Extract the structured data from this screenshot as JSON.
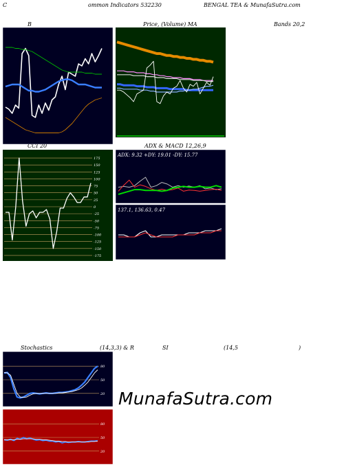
{
  "header": {
    "left": "C",
    "left2": "ommon Indicators 532230",
    "center": "BENGAL TEA & MunafaSutra.com"
  },
  "labels": {
    "bb": "B",
    "price_ma_a": "Price, (Volume) MA",
    "price_ma_b": "Bands 20,2",
    "cci": "CCI 20",
    "adx_macd": "ADX  & MACD 12,26,9",
    "stoch_a": "Stochastics",
    "stoch_b": "(14,3,3) & R",
    "stoch_c": "SI",
    "stoch_d": "(14,5",
    "stoch_e": ")"
  },
  "watermark": "MunafaSutra.com",
  "colors": {
    "dark_panel": "#000022",
    "green_panel": "#002800",
    "green_grid": "#1f4a00",
    "red_panel": "#aa0000",
    "grid_line": "#c8a060",
    "white": "#ffffff",
    "blue": "#3a7fff",
    "green_line": "#00bb00",
    "orange": "#cc7a00"
  },
  "chart_data": [
    {
      "type": "line",
      "panel": "bollinger-bands",
      "title": "B",
      "x": [
        1,
        2,
        3,
        4,
        5,
        6,
        7,
        8,
        9,
        10,
        11,
        12,
        13,
        14,
        15,
        16,
        17,
        18,
        19,
        20,
        21,
        22,
        23,
        24,
        25,
        26,
        27,
        28,
        29,
        30
      ],
      "ylim": [
        0,
        100
      ],
      "series": [
        {
          "values": [
            28,
            26,
            22,
            30,
            27,
            80,
            85,
            78,
            20,
            18,
            30,
            22,
            32,
            25,
            35,
            38,
            50,
            58,
            45,
            62,
            60,
            58,
            70,
            68,
            75,
            70,
            80,
            72,
            78,
            85
          ]
        },
        {
          "values": [
            86,
            86,
            86,
            85,
            85,
            84,
            84,
            83,
            82,
            80,
            78,
            76,
            74,
            72,
            70,
            68,
            66,
            64,
            63,
            62,
            62,
            62,
            62,
            62,
            61,
            61,
            61,
            60,
            60,
            60
          ]
        },
        {
          "values": [
            48,
            49,
            50,
            50,
            50,
            48,
            46,
            44,
            44,
            43,
            43,
            44,
            45,
            47,
            49,
            51,
            53,
            54,
            55,
            55,
            54,
            52,
            50,
            50,
            50,
            49,
            48,
            47,
            47,
            47
          ]
        },
        {
          "values": [
            18,
            16,
            14,
            12,
            10,
            8,
            6,
            5,
            4,
            3,
            3,
            3,
            3,
            3,
            3,
            3,
            3,
            4,
            6,
            9,
            12,
            16,
            20,
            24,
            28,
            31,
            33,
            35,
            36,
            37
          ]
        }
      ]
    },
    {
      "type": "line",
      "panel": "price-moving-averages",
      "title": "Price, (Volume) MA",
      "x": [
        1,
        2,
        3,
        4,
        5,
        6,
        7,
        8,
        9,
        10,
        11,
        12,
        13,
        14,
        15,
        16,
        17,
        18,
        19,
        20,
        21,
        22,
        23,
        24,
        25,
        26,
        27,
        28,
        29,
        30
      ],
      "ylim": [
        0,
        100
      ],
      "series": [
        {
          "values": [
            92,
            91,
            90,
            89,
            88,
            87,
            86,
            85,
            84,
            83,
            82,
            81,
            80,
            80,
            79,
            78,
            78,
            77,
            77,
            76,
            76,
            75,
            75,
            74,
            74,
            73,
            73,
            72,
            72,
            71
          ]
        },
        {
          "values": [
            62,
            62,
            62,
            61,
            61,
            61,
            60,
            60,
            60,
            59,
            59,
            58,
            58,
            57,
            57,
            56,
            56,
            55,
            55,
            55,
            54,
            54,
            54,
            53,
            53,
            53,
            52,
            52,
            52,
            52
          ]
        },
        {
          "values": [
            58,
            58,
            58,
            58,
            58,
            57,
            57,
            57,
            57,
            56,
            56,
            56,
            55,
            55,
            55,
            54,
            54,
            54,
            54,
            53,
            53,
            53,
            53,
            52,
            52,
            52,
            52,
            51,
            51,
            51
          ]
        },
        {
          "values": [
            48,
            48,
            47,
            47,
            47,
            47,
            46,
            46,
            46,
            45,
            45,
            45,
            44,
            44,
            44,
            44,
            43,
            43,
            43,
            43,
            43,
            42,
            42,
            42,
            42,
            42,
            42,
            42,
            42,
            42
          ]
        },
        {
          "values": [
            44,
            44,
            43,
            43,
            43,
            43,
            43,
            42,
            42,
            42,
            41,
            41,
            40,
            40,
            40,
            40,
            40,
            40,
            40,
            41,
            41,
            42,
            42,
            43,
            43,
            44,
            45,
            46,
            46,
            47
          ]
        },
        {
          "values": [
            42,
            42,
            40,
            37,
            34,
            30,
            38,
            40,
            42,
            65,
            68,
            72,
            30,
            28,
            36,
            40,
            38,
            44,
            46,
            52,
            44,
            40,
            48,
            46,
            50,
            38,
            44,
            50,
            47,
            56
          ]
        }
      ]
    },
    {
      "type": "line",
      "panel": "cci",
      "title": "CCI 20",
      "yticks": [
        175,
        150,
        125,
        100,
        75,
        50,
        25,
        0,
        -25,
        -50,
        -75,
        -100,
        -125,
        -150,
        -175
      ],
      "ylim": [
        -185,
        185
      ],
      "x": [
        1,
        2,
        3,
        4,
        5,
        6,
        7,
        8,
        9,
        10,
        11,
        12,
        13,
        14,
        15,
        16,
        17,
        18,
        19,
        20,
        21,
        22,
        23,
        24,
        25,
        26
      ],
      "series": [
        {
          "values": [
            -20,
            -20,
            -120,
            0,
            175,
            20,
            -70,
            -25,
            -15,
            -40,
            -20,
            -20,
            -10,
            -45,
            -150,
            -90,
            -5,
            -5,
            30,
            50,
            35,
            15,
            15,
            35,
            35,
            85
          ]
        }
      ]
    },
    {
      "type": "line",
      "panel": "adx",
      "title": "ADX  & MACD 12,26,9",
      "annotation": "ADX: 9.32  +DY: 19.01 -DY: 15.77",
      "x": [
        1,
        2,
        3,
        4,
        5,
        6,
        7,
        8,
        9,
        10,
        11,
        12,
        13,
        14,
        15,
        16,
        17,
        18,
        19,
        20
      ],
      "ylim": [
        0,
        100
      ],
      "series": [
        {
          "values": [
            30,
            32,
            30,
            34,
            45,
            55,
            30,
            34,
            42,
            38,
            30,
            34,
            30,
            33,
            30,
            34,
            26,
            28,
            24,
            26
          ]
        },
        {
          "values": [
            20,
            35,
            48,
            30,
            36,
            32,
            26,
            22,
            25,
            22,
            24,
            28,
            20,
            23,
            22,
            20,
            22,
            24,
            25,
            22
          ]
        },
        {
          "values": [
            12,
            16,
            20,
            24,
            24,
            22,
            22,
            22,
            20,
            22,
            28,
            30,
            32,
            30,
            30,
            32,
            30,
            30,
            34,
            30
          ]
        }
      ]
    },
    {
      "type": "line",
      "panel": "macd",
      "annotation": "137.1,  136.63,  0.47",
      "x": [
        1,
        2,
        3,
        4,
        5,
        6,
        7,
        8,
        9,
        10,
        11,
        12,
        13,
        14,
        15,
        16,
        17,
        18,
        19,
        20
      ],
      "ylim": [
        -10,
        10
      ],
      "series": [
        {
          "values": [
            0,
            0,
            -1,
            -1,
            1,
            2,
            -1,
            -1,
            0,
            0,
            0,
            0,
            0,
            1,
            1,
            1,
            2,
            2,
            2,
            3
          ]
        },
        {
          "values": [
            -1,
            -1,
            -1,
            -1,
            0,
            1,
            0,
            -1,
            -1,
            -1,
            -1,
            0,
            0,
            0,
            0,
            1,
            1,
            1,
            2,
            2
          ]
        }
      ]
    },
    {
      "type": "line",
      "panel": "stochastics",
      "title": "Stochastics (14,3,3)",
      "yticks": [
        80,
        50,
        20
      ],
      "ylim": [
        0,
        100
      ],
      "x": [
        1,
        2,
        3,
        4,
        5,
        6,
        7,
        8,
        9,
        10,
        11,
        12,
        13,
        14,
        15,
        16,
        17,
        18,
        19,
        20,
        21,
        22,
        23,
        24,
        25,
        26,
        27,
        28,
        29,
        30
      ],
      "series": [
        {
          "values": [
            65,
            66,
            55,
            30,
            12,
            10,
            12,
            16,
            20,
            21,
            20,
            19,
            20,
            21,
            20,
            20,
            21,
            22,
            22,
            23,
            24,
            26,
            28,
            32,
            38,
            45,
            55,
            65,
            75,
            80
          ]
        },
        {
          "values": [
            66,
            65,
            60,
            40,
            20,
            12,
            11,
            12,
            16,
            19,
            20,
            20,
            20,
            20,
            20,
            20,
            20,
            21,
            21,
            22,
            23,
            24,
            26,
            28,
            32,
            38,
            45,
            55,
            65,
            72
          ]
        }
      ]
    },
    {
      "type": "line",
      "panel": "rsi",
      "title": "RSI (14,5)",
      "yticks": [
        80,
        50,
        20
      ],
      "ylim": [
        0,
        100
      ],
      "x": [
        1,
        2,
        3,
        4,
        5,
        6,
        7,
        8,
        9,
        10,
        11,
        12,
        13,
        14,
        15,
        16,
        17,
        18,
        19,
        20,
        21,
        22,
        23,
        24,
        25,
        26,
        27,
        28,
        29,
        30
      ],
      "series": [
        {
          "values": [
            45,
            44,
            46,
            43,
            48,
            46,
            50,
            47,
            49,
            46,
            44,
            45,
            43,
            44,
            42,
            42,
            40,
            41,
            38,
            40,
            39,
            40,
            40,
            41,
            40,
            40,
            41,
            42,
            42,
            43
          ]
        },
        {
          "values": [
            45,
            45,
            45,
            45,
            46,
            46,
            47,
            47,
            47,
            47,
            46,
            46,
            45,
            45,
            44,
            43,
            42,
            42,
            41,
            41,
            40,
            40,
            40,
            40,
            40,
            40,
            40,
            41,
            41,
            42
          ]
        }
      ]
    }
  ]
}
